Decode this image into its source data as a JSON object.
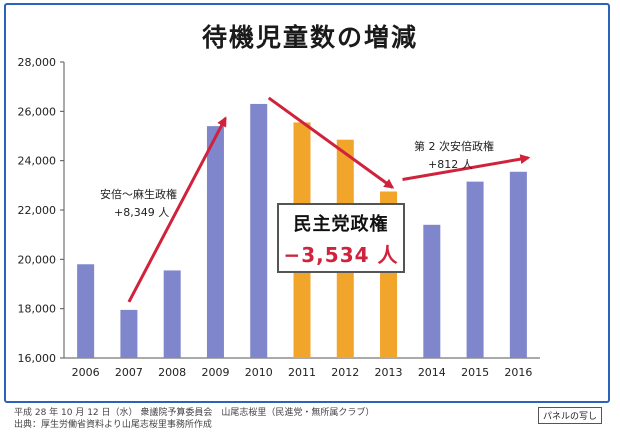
{
  "chart_data": {
    "type": "bar",
    "title": "待機児童数の増減",
    "categories": [
      "2006",
      "2007",
      "2008",
      "2009",
      "2010",
      "2011",
      "2012",
      "2013",
      "2014",
      "2015",
      "2016"
    ],
    "values": [
      19800,
      17950,
      19550,
      25400,
      26300,
      25550,
      24850,
      22750,
      21400,
      23150,
      23550
    ],
    "bar_color_group": [
      "blue",
      "blue",
      "blue",
      "blue",
      "blue",
      "orange",
      "orange",
      "orange",
      "blue",
      "blue",
      "blue"
    ],
    "colors": {
      "blue": "#7f86cc",
      "orange": "#f1a52b",
      "arrow": "#d0223b"
    },
    "ylim": [
      16000,
      28000
    ],
    "yticks": [
      "16,000",
      "18,000",
      "20,000",
      "22,000",
      "24,000",
      "26,000",
      "28,000"
    ],
    "ytick_values": [
      16000,
      18000,
      20000,
      22000,
      24000,
      26000,
      28000
    ],
    "grid": false,
    "annotations": {
      "abe_aso": {
        "line1": "安倍～麻生政権",
        "line2": "+8,349 人"
      },
      "dpj": {
        "line1": "民主党政権",
        "line2": "−3,534 人"
      },
      "abe2": {
        "line1": "第 2 次安倍政権",
        "line2": "+812 人"
      }
    }
  },
  "footer": {
    "line1": "平成 28 年 10 月 12 日（水） 衆議院予算委員会　山尾志桜里（民進党・無所属クラブ）",
    "line2": "出典：厚生労働省資料より山尾志桜里事務所作成"
  },
  "panel_label": "パネルの写し"
}
